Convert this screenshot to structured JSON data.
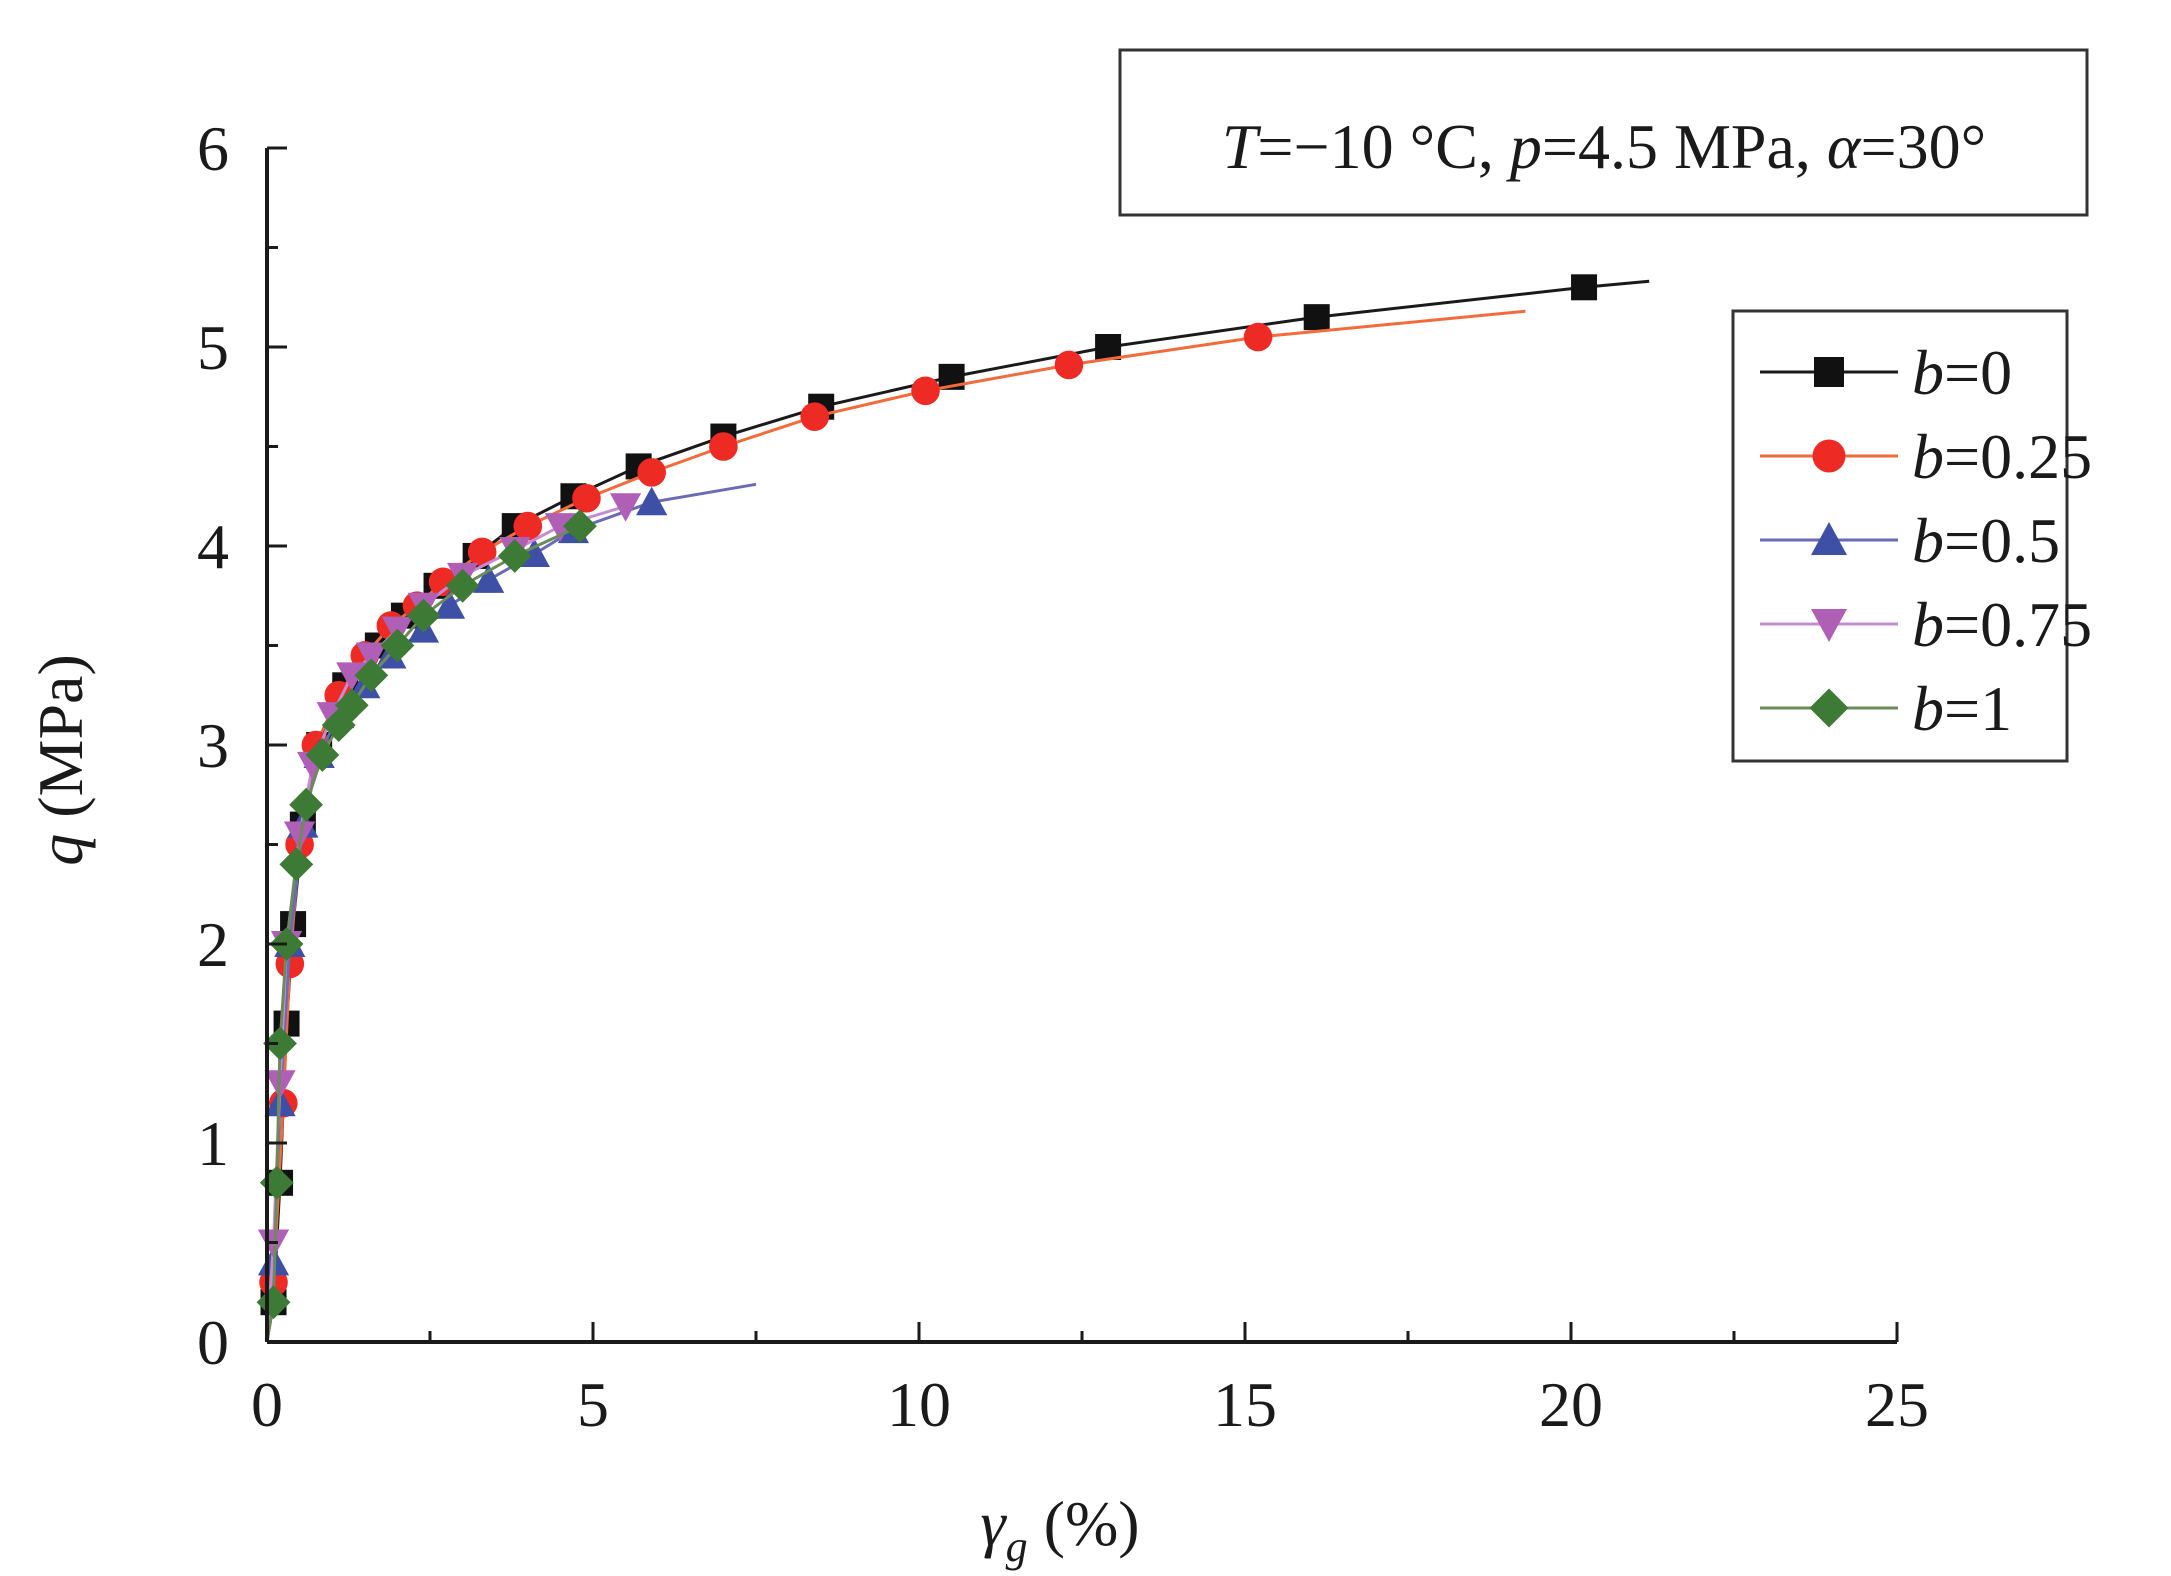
{
  "chart_data": {
    "type": "line",
    "xlabel_main": "γ",
    "xlabel_sub": "g",
    "xlabel_unit": " (%)",
    "ylabel_main": "q",
    "ylabel_unit": " (MPa)",
    "xlim": [
      0,
      25
    ],
    "ylim": [
      0,
      6
    ],
    "xticks": [
      0,
      5,
      10,
      15,
      20,
      25
    ],
    "yticks": [
      0,
      1,
      2,
      3,
      4,
      5,
      6
    ],
    "grid": false,
    "legend_position": "right",
    "annotation": {
      "T_sym": "T",
      "T_val": "=−10 °C, ",
      "p_sym": "p",
      "p_val": "=4.5 MPa, ",
      "a_sym": "α",
      "a_val": "=30°"
    },
    "series": [
      {
        "name": "b=0",
        "name_sym": "b",
        "name_val": "=0",
        "color": "#1a1a1a",
        "marker": "square",
        "marker_color": "#111111",
        "line_end": [
          21.2,
          5.33
        ],
        "points": [
          [
            0.1,
            0.2
          ],
          [
            0.2,
            0.8
          ],
          [
            0.3,
            1.6
          ],
          [
            0.4,
            2.1
          ],
          [
            0.55,
            2.6
          ],
          [
            0.8,
            3.0
          ],
          [
            1.2,
            3.3
          ],
          [
            1.7,
            3.5
          ],
          [
            2.1,
            3.65
          ],
          [
            2.6,
            3.8
          ],
          [
            3.2,
            3.95
          ],
          [
            3.8,
            4.1
          ],
          [
            4.7,
            4.25
          ],
          [
            5.7,
            4.4
          ],
          [
            7.0,
            4.55
          ],
          [
            8.5,
            4.7
          ],
          [
            10.5,
            4.85
          ],
          [
            12.9,
            5.0
          ],
          [
            16.1,
            5.15
          ],
          [
            20.2,
            5.3
          ]
        ]
      },
      {
        "name": "b=0.25",
        "name_sym": "b",
        "name_val": "=0.25",
        "color": "#f26b3a",
        "marker": "circle",
        "marker_color": "#ee2a24",
        "line_end": [
          19.3,
          5.18
        ],
        "points": [
          [
            0.1,
            0.3
          ],
          [
            0.25,
            1.2
          ],
          [
            0.35,
            1.9
          ],
          [
            0.5,
            2.5
          ],
          [
            0.75,
            3.0
          ],
          [
            1.1,
            3.25
          ],
          [
            1.5,
            3.45
          ],
          [
            1.9,
            3.6
          ],
          [
            2.3,
            3.7
          ],
          [
            2.7,
            3.82
          ],
          [
            3.3,
            3.97
          ],
          [
            4.0,
            4.1
          ],
          [
            4.9,
            4.24
          ],
          [
            5.9,
            4.37
          ],
          [
            7.0,
            4.5
          ],
          [
            8.4,
            4.65
          ],
          [
            10.1,
            4.78
          ],
          [
            12.3,
            4.91
          ],
          [
            15.2,
            5.05
          ]
        ]
      },
      {
        "name": "b=0.5",
        "name_sym": "b",
        "name_val": "=0.5",
        "color": "#6a6ab6",
        "marker": "triangle-up",
        "marker_color": "#3e4fa6",
        "line_end": [
          7.5,
          4.31
        ],
        "points": [
          [
            0.1,
            0.4
          ],
          [
            0.2,
            1.2
          ],
          [
            0.35,
            2.0
          ],
          [
            0.55,
            2.6
          ],
          [
            0.8,
            2.95
          ],
          [
            1.1,
            3.15
          ],
          [
            1.5,
            3.3
          ],
          [
            1.9,
            3.45
          ],
          [
            2.4,
            3.58
          ],
          [
            2.8,
            3.7
          ],
          [
            3.4,
            3.83
          ],
          [
            4.1,
            3.96
          ],
          [
            4.7,
            4.08
          ],
          [
            5.9,
            4.22
          ]
        ]
      },
      {
        "name": "b=0.75",
        "name_sym": "b",
        "name_val": "=0.75",
        "color": "#c58cd1",
        "marker": "triangle-down",
        "marker_color": "#b05fb7",
        "line_end": [
          5.5,
          4.2
        ],
        "points": [
          [
            0.1,
            0.5
          ],
          [
            0.2,
            1.3
          ],
          [
            0.3,
            2.0
          ],
          [
            0.5,
            2.55
          ],
          [
            0.7,
            2.9
          ],
          [
            1.0,
            3.15
          ],
          [
            1.3,
            3.35
          ],
          [
            1.6,
            3.45
          ],
          [
            2.0,
            3.58
          ],
          [
            2.4,
            3.7
          ],
          [
            3.0,
            3.85
          ],
          [
            3.8,
            3.98
          ],
          [
            4.5,
            4.1
          ],
          [
            5.5,
            4.2
          ]
        ]
      },
      {
        "name": "b=1",
        "name_sym": "b",
        "name_val": "=1",
        "color": "#6c8a5a",
        "marker": "diamond",
        "marker_color": "#3c7a35",
        "line_end": [
          4.9,
          4.1
        ],
        "points": [
          [
            0.1,
            0.2
          ],
          [
            0.15,
            0.8
          ],
          [
            0.2,
            1.5
          ],
          [
            0.3,
            2.0
          ],
          [
            0.45,
            2.4
          ],
          [
            0.6,
            2.7
          ],
          [
            0.85,
            2.95
          ],
          [
            1.1,
            3.1
          ],
          [
            1.3,
            3.2
          ],
          [
            1.6,
            3.35
          ],
          [
            2.0,
            3.5
          ],
          [
            2.4,
            3.65
          ],
          [
            3.0,
            3.8
          ],
          [
            3.8,
            3.95
          ],
          [
            4.8,
            4.1
          ]
        ]
      }
    ]
  }
}
